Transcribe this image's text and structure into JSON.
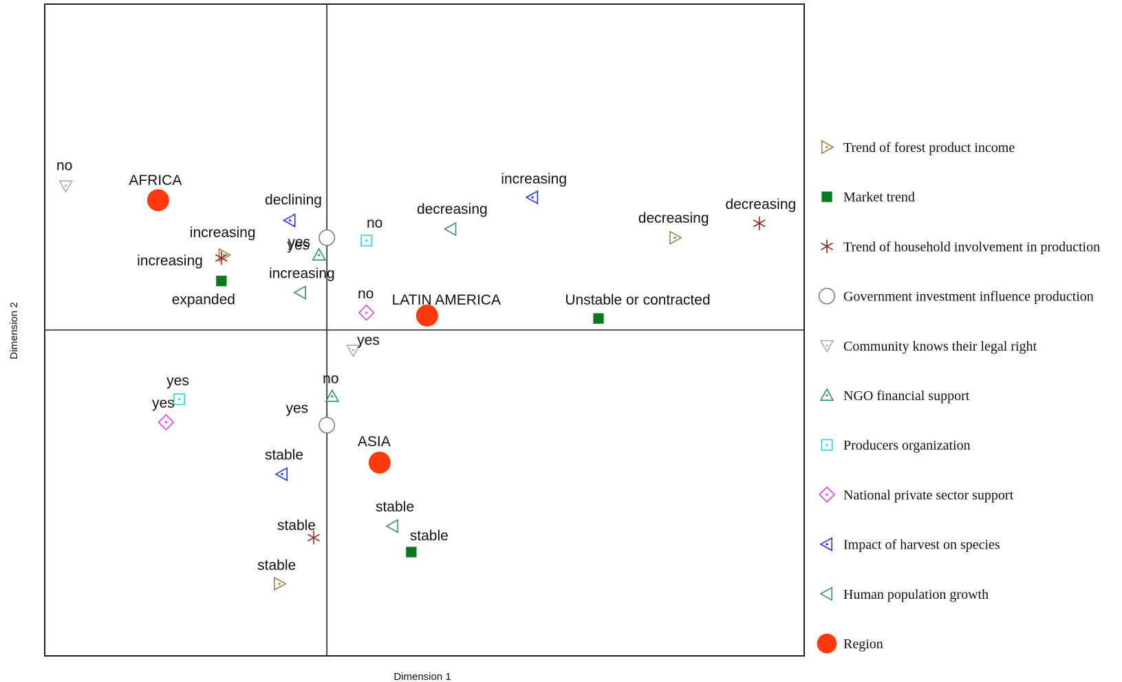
{
  "chart_data": {
    "type": "scatter",
    "title": "",
    "xlabel": "Dimension 1",
    "ylabel": "Dimension 2",
    "xlim": [
      -1.07,
      1.81
    ],
    "ylim": [
      -1.13,
      1.13
    ],
    "grid": false,
    "reference_lines": {
      "x": 0,
      "y": 0
    },
    "legend_position": "right",
    "series": [
      {
        "name": "Trend of forest product income",
        "marker": "tri-right-dot",
        "color": "#a0804a",
        "points": [
          {
            "label": "increasing",
            "x": -0.39,
            "y": 0.26
          },
          {
            "label": "decreasing",
            "x": 1.32,
            "y": 0.32
          },
          {
            "label": "stable",
            "x": -0.18,
            "y": -0.88
          }
        ]
      },
      {
        "name": "Market trend",
        "marker": "square",
        "color": "#0a7a1e",
        "points": [
          {
            "label": "expanded",
            "x": -0.4,
            "y": 0.17
          },
          {
            "label": "Unstable or contracted",
            "x": 1.03,
            "y": 0.04
          },
          {
            "label": "stable",
            "x": 0.32,
            "y": -0.77
          }
        ]
      },
      {
        "name": "Trend of household involvement in production",
        "marker": "asterisk",
        "color": "#8b2a1e",
        "points": [
          {
            "label": "increasing",
            "x": -0.4,
            "y": 0.25
          },
          {
            "label": "decreasing",
            "x": 1.64,
            "y": 0.37
          },
          {
            "label": "stable",
            "x": -0.05,
            "y": -0.72
          }
        ]
      },
      {
        "name": "Government investment influence production",
        "marker": "circle-open",
        "color": "#777777",
        "points": [
          {
            "label": "yes",
            "x": 0.0,
            "y": 0.32
          },
          {
            "label": "yes",
            "x": 0.0,
            "y": -0.33
          }
        ]
      },
      {
        "name": "Community knows their legal right",
        "marker": "tri-down-dot",
        "color": "#aaaaaa",
        "points": [
          {
            "label": "no",
            "x": -0.99,
            "y": 0.5
          },
          {
            "label": "yes",
            "x": 0.1,
            "y": -0.07
          }
        ]
      },
      {
        "name": "NGO financial support",
        "marker": "tri-up-dot",
        "color": "#2e8b7a",
        "points": [
          {
            "label": "yes",
            "x": -0.03,
            "y": 0.26
          },
          {
            "label": "no",
            "x": 0.02,
            "y": -0.23
          }
        ]
      },
      {
        "name": "Producers organization",
        "marker": "square-open-dot",
        "color": "#22d3e6",
        "points": [
          {
            "label": "no",
            "x": 0.15,
            "y": 0.31
          },
          {
            "label": "yes",
            "x": -0.56,
            "y": -0.24
          }
        ]
      },
      {
        "name": "National private sector support",
        "marker": "diamond-dot",
        "color": "#e83ce8",
        "points": [
          {
            "label": "no",
            "x": 0.15,
            "y": 0.06
          },
          {
            "label": "yes",
            "x": -0.61,
            "y": -0.32
          }
        ]
      },
      {
        "name": "Impact of harvest on species",
        "marker": "tri-left-dot",
        "color": "#2233dd",
        "points": [
          {
            "label": "declining",
            "x": -0.14,
            "y": 0.38
          },
          {
            "label": "increasing",
            "x": 0.78,
            "y": 0.46
          },
          {
            "label": "stable",
            "x": -0.17,
            "y": -0.5
          }
        ]
      },
      {
        "name": "Human population growth",
        "marker": "tri-left",
        "color": "#3f8a7a",
        "points": [
          {
            "label": "decreasing",
            "x": 0.47,
            "y": 0.35
          },
          {
            "label": "increasing",
            "x": -0.1,
            "y": 0.13
          },
          {
            "label": "stable",
            "x": 0.25,
            "y": -0.68
          }
        ]
      },
      {
        "name": "Region",
        "marker": "circle-filled",
        "color": "#ff3a0f",
        "points": [
          {
            "label": "AFRICA",
            "x": -0.64,
            "y": 0.45
          },
          {
            "label": "LATIN AMERICA",
            "x": 0.38,
            "y": 0.05
          },
          {
            "label": "ASIA",
            "x": 0.2,
            "y": -0.46
          }
        ]
      }
    ],
    "legend": [
      {
        "text": "Trend of forest product  income",
        "marker": "tri-right-dot",
        "color": "#a0804a"
      },
      {
        "text": "Market trend",
        "marker": "square",
        "color": "#0a7a1e"
      },
      {
        "text": "Trend of household involvement in production",
        "marker": "asterisk",
        "color": "#8b2a1e"
      },
      {
        "text": "Government investment influence production",
        "marker": "circle-open",
        "color": "#777777"
      },
      {
        "text": "Community knows their legal right",
        "marker": "tri-down-dot",
        "color": "#aaaaaa"
      },
      {
        "text": "NGO financial support",
        "marker": "tri-up-dot",
        "color": "#2e8b7a"
      },
      {
        "text": "Producers organization",
        "marker": "square-open-dot",
        "color": "#22d3e6"
      },
      {
        "text": "National private sector support",
        "marker": "diamond-dot",
        "color": "#e83ce8"
      },
      {
        "text": "Impact of harvest on species",
        "marker": "tri-left-dot",
        "color": "#2233dd"
      },
      {
        "text": "Human population growth",
        "marker": "tri-left",
        "color": "#3f8a7a"
      },
      {
        "text": "Region",
        "marker": "circle-filled",
        "color": "#ff3a0f"
      }
    ]
  }
}
